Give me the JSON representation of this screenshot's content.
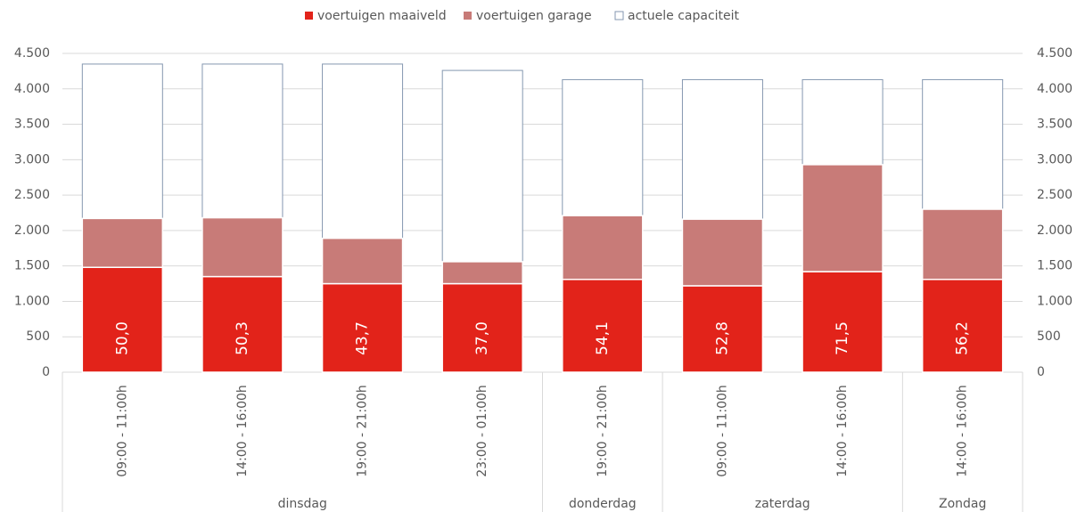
{
  "chart_data": {
    "type": "stacked_bar_with_capacity",
    "categories": [
      "09:00 - 11:00h",
      "14:00 - 16:00h",
      "19:00 - 21:00h",
      "23:00 - 01:00h",
      "19:00 - 21:00h",
      "09:00 - 11:00h",
      "14:00 - 16:00h",
      "14:00 - 16:00h"
    ],
    "groups": [
      {
        "label": "dinsdag",
        "span": 4
      },
      {
        "label": "donderdag",
        "span": 1
      },
      {
        "label": "zaterdag",
        "span": 2
      },
      {
        "label": "Zondag",
        "span": 1
      }
    ],
    "series": [
      {
        "name": "voertuigen maaiveld",
        "color": "#e2231a",
        "values": [
          1480,
          1350,
          1250,
          1250,
          1310,
          1220,
          1420,
          1310
        ],
        "value_labels": [
          "50,0",
          "50,3",
          "43,7",
          "37,0",
          "54,1",
          "52,8",
          "71,5",
          "56,2"
        ]
      },
      {
        "name": "voertuigen garage",
        "color": "#c87b78",
        "values": [
          690,
          830,
          640,
          310,
          900,
          940,
          1510,
          990
        ]
      },
      {
        "name": "actuele capaciteit",
        "color": "#8497b0",
        "values": [
          4350,
          4350,
          4350,
          4260,
          4130,
          4130,
          4130,
          4130
        ],
        "overlay": true
      }
    ],
    "ylim": [
      0,
      4500
    ],
    "yticks": [
      0,
      500,
      {
        "value": 1000,
        "label": "1.000"
      },
      {
        "value": 1500,
        "label": "1.500"
      },
      {
        "value": 2000,
        "label": "2.000"
      },
      {
        "value": 2500,
        "label": "2.500"
      },
      {
        "value": 3000,
        "label": "3.000"
      },
      {
        "value": 3500,
        "label": "3.500"
      },
      {
        "value": 4000,
        "label": "4.000"
      },
      {
        "value": 4500,
        "label": "4.500"
      }
    ],
    "y2lim": [
      0,
      4500
    ],
    "y2ticks": [
      0,
      500,
      {
        "value": 1000,
        "label": "1.000"
      },
      {
        "value": 1500,
        "label": "1.500"
      },
      {
        "value": 2000,
        "label": "2.000"
      },
      {
        "value": 2500,
        "label": "2.500"
      },
      {
        "value": 3000,
        "label": "3.000"
      },
      {
        "value": 3500,
        "label": "3.500"
      },
      {
        "value": 4000,
        "label": "4.000"
      },
      {
        "value": 4500,
        "label": "4.500"
      }
    ],
    "grid": true,
    "legend": "top"
  }
}
